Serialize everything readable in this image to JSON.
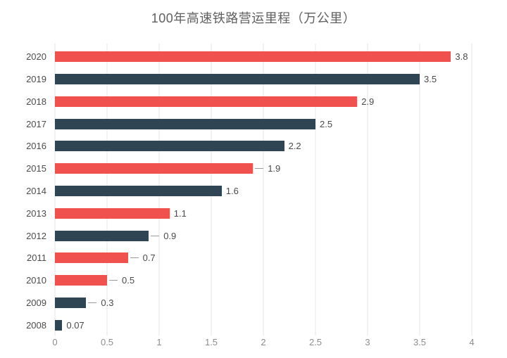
{
  "title": "100年高速铁路营运里程（万公里）",
  "colors": {
    "bar_red": "#f0504e",
    "bar_navy": "#2f4554",
    "gridline": "#e6e6e6",
    "title_text": "#606060",
    "axis_tick_text": "#8d8d8d",
    "category_text": "#4b4b4b",
    "value_text": "#4a4a4a",
    "leader_line": "#9a9a9a",
    "background": "#ffffff"
  },
  "chart_data": {
    "type": "bar",
    "orientation": "horizontal",
    "title": "100年高速铁路营运里程（万公里）",
    "xlabel": "",
    "ylabel": "",
    "categories": [
      "2020",
      "2019",
      "2018",
      "2017",
      "2016",
      "2015",
      "2014",
      "2013",
      "2012",
      "2011",
      "2010",
      "2009",
      "2008"
    ],
    "values": [
      3.8,
      3.5,
      2.9,
      2.5,
      2.2,
      1.9,
      1.6,
      1.1,
      0.9,
      0.7,
      0.5,
      0.3,
      0.07
    ],
    "value_labels": [
      "3.8",
      "3.5",
      "2.9",
      "2.5",
      "2.2",
      "1.9",
      "1.6",
      "1.1",
      "0.9",
      "0.7",
      "0.5",
      "0.3",
      "0.07"
    ],
    "bar_colors": [
      "#f0504e",
      "#2f4554",
      "#f0504e",
      "#2f4554",
      "#2f4554",
      "#f0504e",
      "#2f4554",
      "#f0504e",
      "#2f4554",
      "#f0504e",
      "#f0504e",
      "#2f4554",
      "#2f4554"
    ],
    "leader_line": [
      false,
      false,
      false,
      false,
      false,
      true,
      false,
      false,
      true,
      true,
      true,
      true,
      false
    ],
    "xlim": [
      0,
      4
    ],
    "x_ticks": [
      "0",
      "0.5",
      "1",
      "1.5",
      "2",
      "2.5",
      "3",
      "3.5",
      "4"
    ],
    "grid": true,
    "legend": false
  }
}
